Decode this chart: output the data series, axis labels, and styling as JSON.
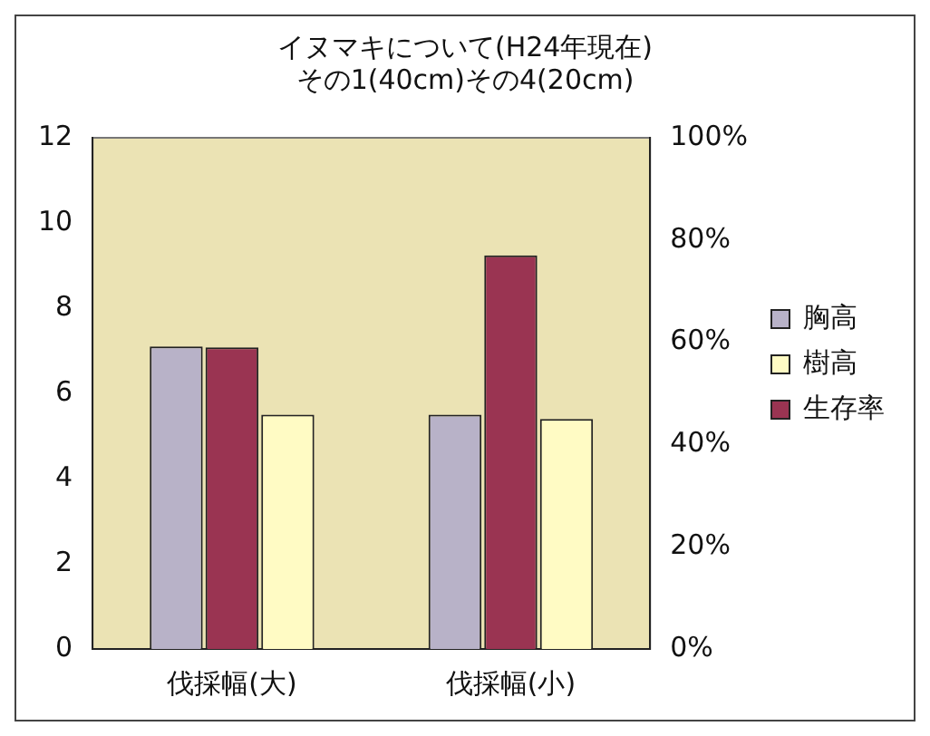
{
  "chart_data": {
    "type": "bar",
    "title": [
      "イヌマキについて(H24年現在)",
      "その1(40cm)その4(20cm)"
    ],
    "categories": [
      "伐採幅(大)",
      "伐採幅(小)"
    ],
    "series": [
      {
        "name": "胸高",
        "color": "#b8b2c8",
        "values": [
          7.1,
          5.5
        ]
      },
      {
        "name": "生存率",
        "color": "#9a3452",
        "values": [
          59,
          77
        ],
        "axis": "y2"
      },
      {
        "name": "樹高",
        "color": "#fffbc4",
        "values": [
          5.5,
          5.4
        ]
      }
    ],
    "ylim": [
      0,
      12
    ],
    "yticks": [
      0,
      2,
      4,
      6,
      8,
      10,
      12
    ],
    "y2lim": [
      0,
      100
    ],
    "y2ticks": [
      {
        "value": 0,
        "label": "0%"
      },
      {
        "value": 20,
        "label": "20%"
      },
      {
        "value": 40,
        "label": "40%"
      },
      {
        "value": 60,
        "label": "60%"
      },
      {
        "value": 80,
        "label": "80%"
      },
      {
        "value": 100,
        "label": "100%"
      }
    ],
    "grid": false,
    "legend": "right"
  }
}
